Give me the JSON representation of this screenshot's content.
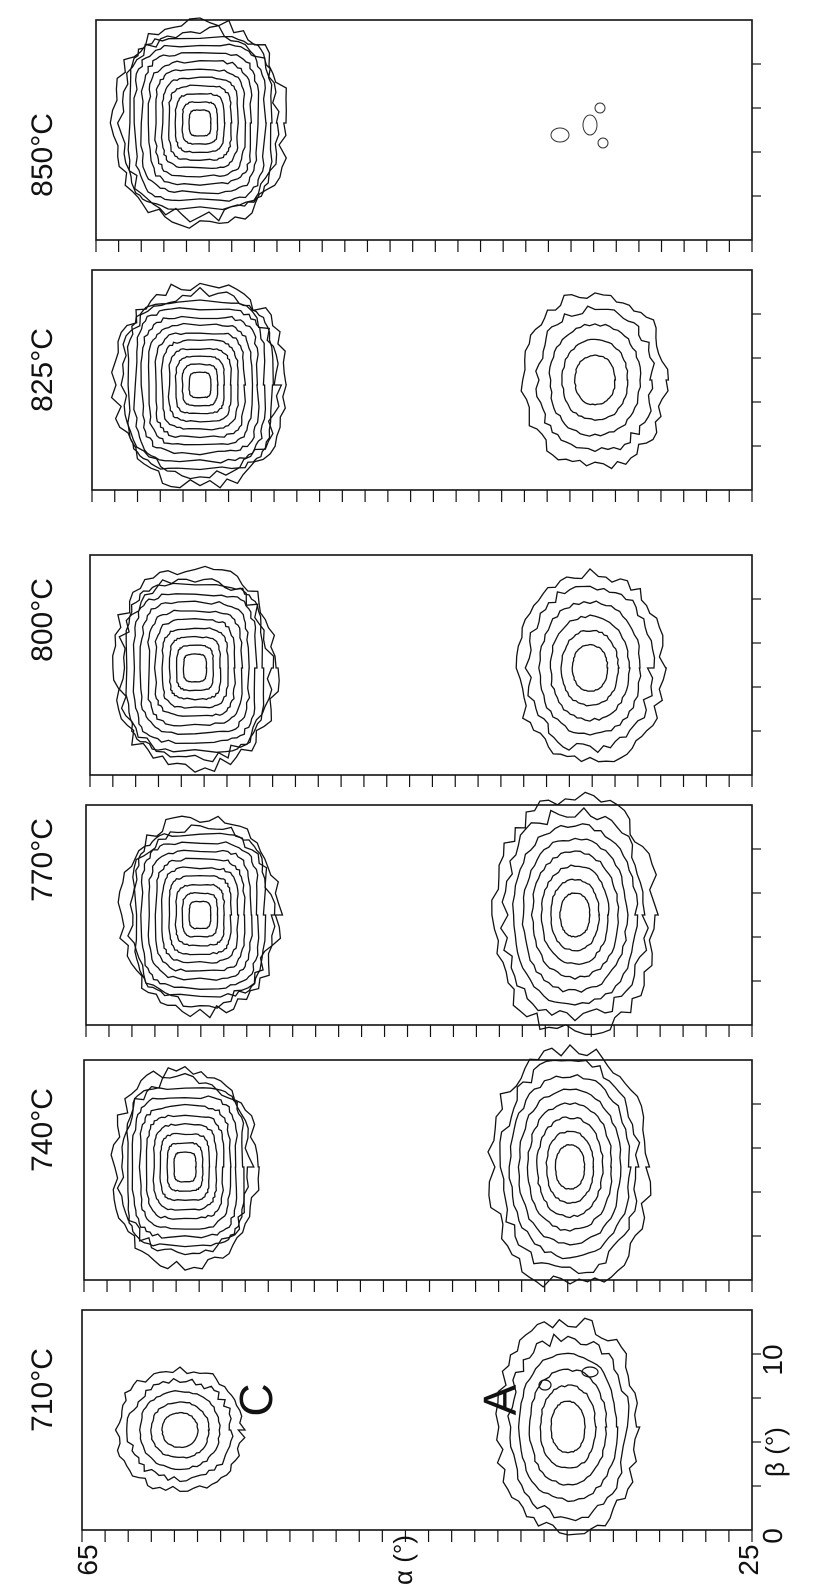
{
  "figure": {
    "panels": [
      {
        "temperature": "710°C",
        "label_C": "C",
        "label_A": "A"
      },
      {
        "temperature": "740°C"
      },
      {
        "temperature": "770°C"
      },
      {
        "temperature": "800°C"
      },
      {
        "temperature": "825°C"
      },
      {
        "temperature": "850°C"
      }
    ],
    "alpha_axis": {
      "label": "α (°)",
      "min_label": "25",
      "max_label": "65"
    },
    "beta_axis": {
      "label": "β (°)",
      "tick_0": "0",
      "tick_5": "5",
      "tick_10": "10"
    }
  }
}
